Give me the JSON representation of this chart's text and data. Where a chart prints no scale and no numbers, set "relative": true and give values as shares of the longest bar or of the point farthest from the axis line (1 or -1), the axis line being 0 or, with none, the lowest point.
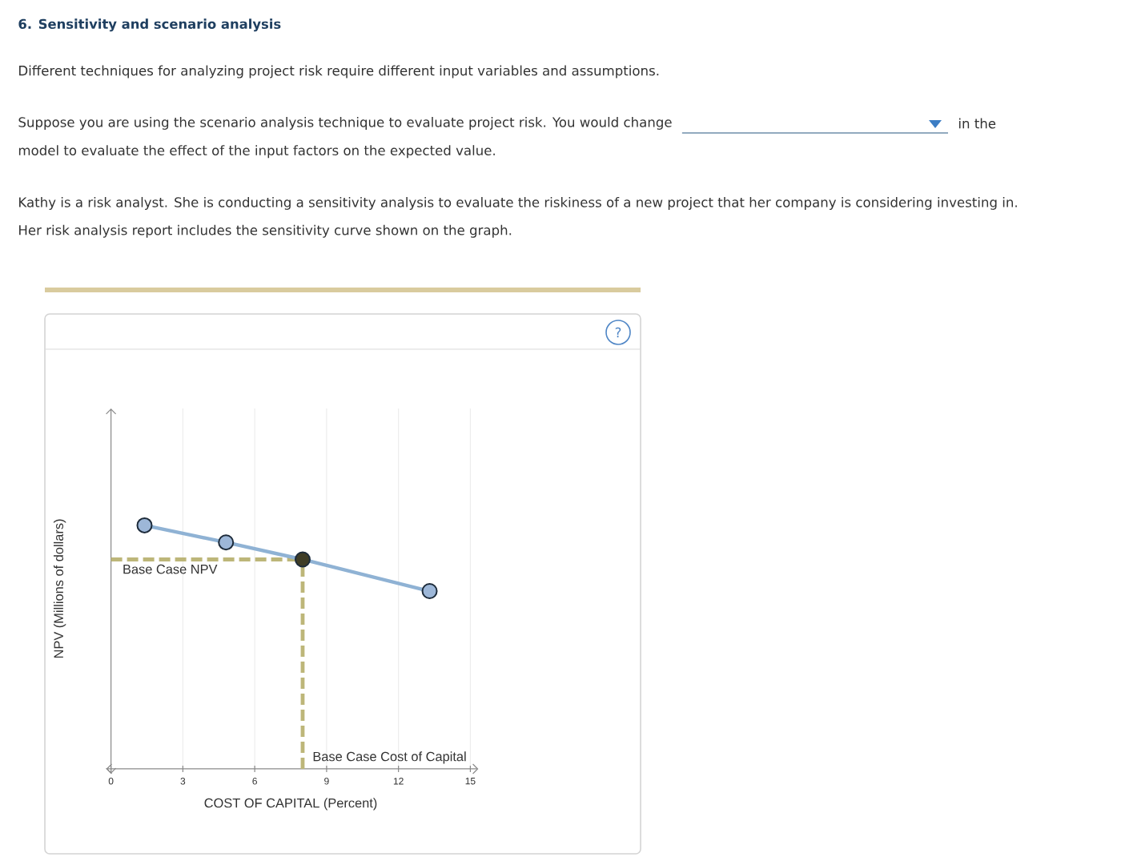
{
  "chart_data": {
    "type": "line",
    "title": "6. Sensitivity and scenario analysis",
    "annotations": [
      "Different techniques for analyzing project risk require different input variables and assumptions.",
      "Suppose you are using the scenario analysis technique to evaluate project risk. You would change",
      "in the",
      "model to evaluate the effect of the input factors on the expected value.",
      "Kathy is a risk analyst. She is conducting a sensitivity analysis to evaluate the riskiness of a new project that her company is considering investing in.",
      "Her risk analysis report includes the sensitivity curve shown on the graph.",
      "?"
    ],
    "xlabel": "COST OF CAPITAL (Percent)",
    "ylabel": "NPV (Millions of dollars)",
    "x": [
      1.4,
      4.8,
      8,
      13.3
    ],
    "values": [
      1,
      0.93,
      0.86,
      0.73
    ],
    "relative": true,
    "color": "#8fb2d4",
    "colors": [
      "#9db7d8",
      "#9db7d8",
      "#3f3d26",
      "#9db7d8"
    ],
    "xlim": [
      0,
      15
    ],
    "xticks": [
      0,
      3,
      6,
      9,
      12,
      15
    ],
    "grid": "x",
    "marker": "circle",
    "line_style": "solid",
    "ref_lines": [
      {
        "axis": "y",
        "value": 0.86,
        "label": "Base Case NPV",
        "color": "#bdb679",
        "line_style": "dashed"
      },
      {
        "axis": "x",
        "value": 8,
        "label": "Base Case Cost of Capital",
        "color": "#bdb679",
        "line_style": "dashed"
      }
    ]
  }
}
